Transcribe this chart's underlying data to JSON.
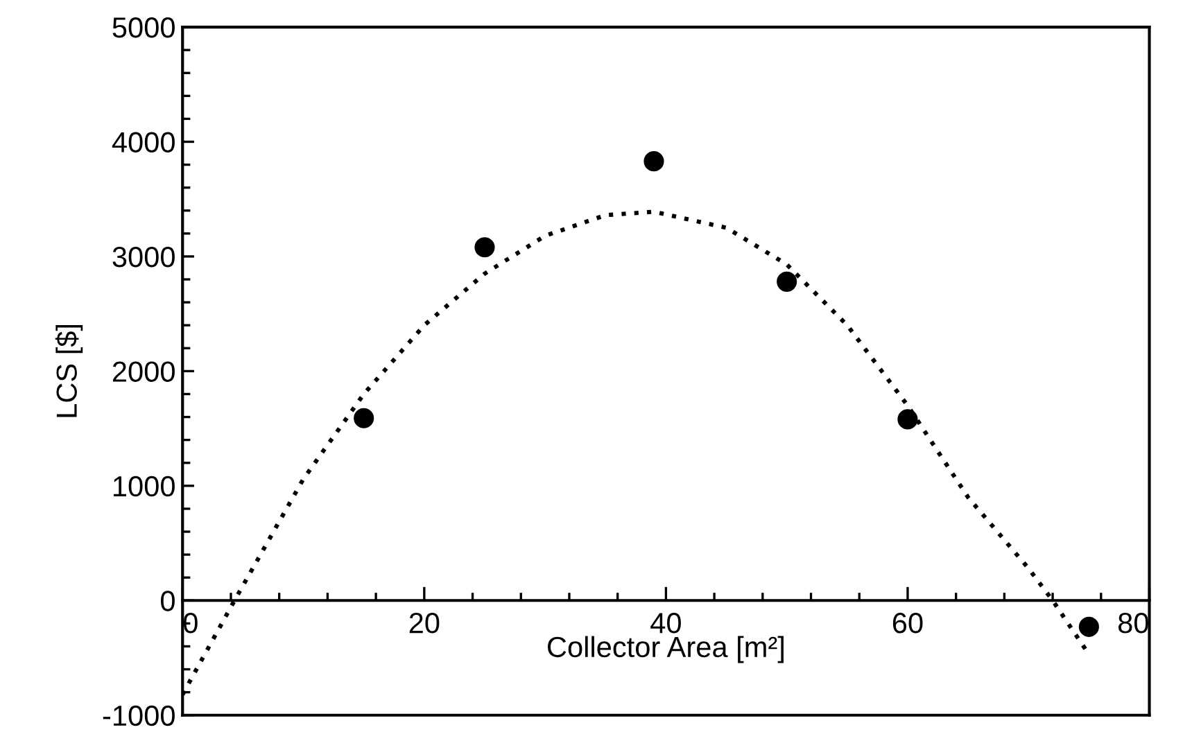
{
  "chart_data": {
    "type": "scatter",
    "xlabel": "Collector Area [m²]",
    "ylabel": "LCS [$]",
    "series": [
      {
        "color": "#000000",
        "marker": "circle",
        "x": [
          15,
          25,
          39,
          50,
          60,
          75
        ],
        "values": [
          1590,
          3080,
          3830,
          2780,
          1580,
          -230
        ]
      },
      {
        "type": "line",
        "color": "#000000",
        "line_style": "dotted",
        "marker": "none",
        "x": [
          0,
          4.3,
          10,
          15,
          20,
          25,
          30,
          35,
          39,
          45,
          50,
          55,
          60,
          65,
          70,
          72,
          75
        ],
        "values": [
          -820,
          0,
          1060,
          1800,
          2400,
          2850,
          3180,
          3360,
          3390,
          3250,
          2930,
          2400,
          1700,
          900,
          280,
          0,
          -470
        ]
      }
    ],
    "xlim": [
      0,
      80
    ],
    "xticks": [
      0,
      20,
      40,
      60,
      80
    ],
    "ylim": [
      -1000,
      5000
    ],
    "yticks": [
      -1000,
      0,
      1000,
      2000,
      3000,
      4000,
      5000
    ],
    "grid": false,
    "legend": false
  }
}
